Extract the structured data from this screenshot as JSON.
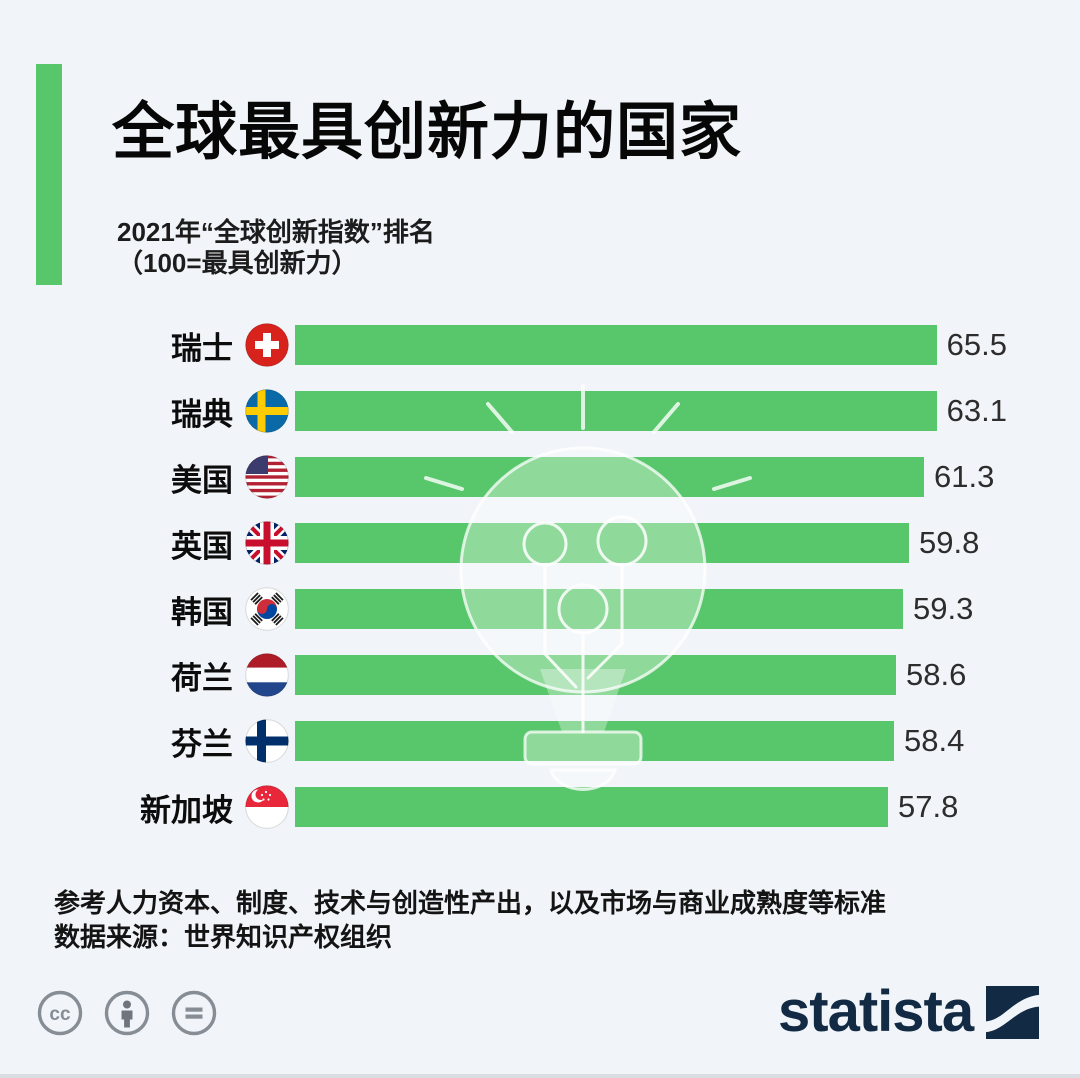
{
  "title": "全球最具创新力的国家",
  "subtitle_line1": "2021年“全球创新指数”排名",
  "subtitle_line2": "（100=最具创新力）",
  "chart_data": {
    "type": "bar",
    "orientation": "horizontal",
    "title": "全球最具创新力的国家",
    "subtitle": "2021年“全球创新指数”排名（100=最具创新力）",
    "categories": [
      "瑞士",
      "瑞典",
      "美国",
      "英国",
      "韩国",
      "荷兰",
      "芬兰",
      "新加坡"
    ],
    "values": [
      65.5,
      63.1,
      61.3,
      59.8,
      59.3,
      58.6,
      58.4,
      57.8
    ],
    "flags": [
      "switzerland",
      "sweden",
      "usa",
      "uk",
      "south-korea",
      "netherlands",
      "finland",
      "singapore"
    ],
    "xlim": [
      0,
      65.5
    ],
    "grid": false,
    "legend": "none",
    "value_labels": "right-of-bar, one decimal",
    "bar_color": "#58c66b"
  },
  "footer": {
    "note": "参考人力资本、制度、技术与创造性产出，以及市场与商业成熟度等标准",
    "source": "数据来源：世界知识产权组织"
  },
  "license": {
    "icons": [
      "cc-icon",
      "attribution-icon",
      "equals-icon"
    ]
  },
  "branding": {
    "logo_text": "statista"
  },
  "colors": {
    "bar_green": "#58c66b",
    "accent_green": "#58c66b",
    "statista_navy": "#122a43",
    "background": "#f1f5f9",
    "icon_gray": "#868d95"
  }
}
